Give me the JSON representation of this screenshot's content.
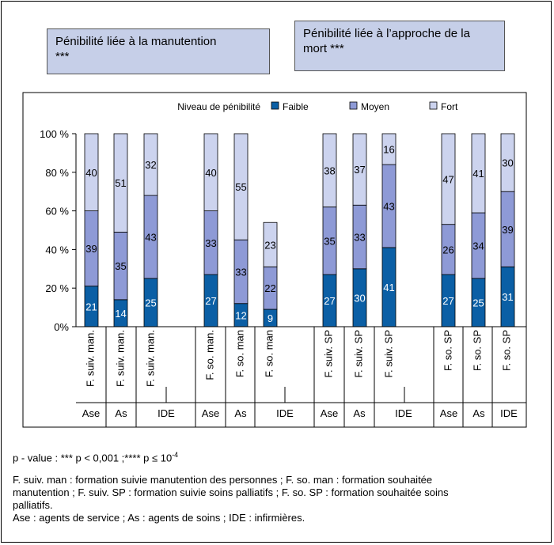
{
  "title_left": {
    "line1": "Pénibilité liée à la manutention",
    "line2": "***"
  },
  "title_right": {
    "line1": "Pénibilité liée à l’approche de la",
    "line2": "mort ***"
  },
  "chart_data": {
    "type": "bar",
    "stacked": true,
    "percent_scale": true,
    "legend_title": "Niveau de pénibilité",
    "legend_position": "top",
    "yticks": [
      "0%",
      "20 %",
      "40 %",
      "60 %",
      "80 %",
      "100 %"
    ],
    "ylim": [
      0,
      100
    ],
    "series": [
      {
        "name": "Faible",
        "color": "#0b5fa5",
        "values": [
          21,
          14,
          25,
          27,
          12,
          9,
          27,
          30,
          41,
          27,
          25,
          31
        ]
      },
      {
        "name": "Moyen",
        "color": "#8e9ad6",
        "values": [
          39,
          35,
          43,
          33,
          33,
          22,
          35,
          33,
          43,
          26,
          34,
          39
        ]
      },
      {
        "name": "Fort",
        "color": "#ccd3ee",
        "values": [
          40,
          51,
          32,
          40,
          55,
          23,
          38,
          37,
          16,
          47,
          41,
          30
        ]
      }
    ],
    "groups": [
      {
        "categories": [
          "F. suiv. man.",
          "F. suiv. man.",
          "F. suiv. man."
        ],
        "roles": [
          "Ase",
          "As",
          "IDE"
        ]
      },
      {
        "categories": [
          "F. so. man.",
          "F. so. man",
          "F. so. man"
        ],
        "roles": [
          "Ase",
          "As",
          "IDE"
        ]
      },
      {
        "categories": [
          "F. suiv. SP",
          "F. suiv. SP",
          "F. suiv. SP"
        ],
        "roles": [
          "Ase",
          "As",
          "IDE"
        ]
      },
      {
        "categories": [
          "F. so. SP",
          "F. so. SP",
          "F. so. SP"
        ],
        "roles": [
          "Ase",
          "As",
          "IDE"
        ]
      }
    ]
  },
  "notes": {
    "pvalue": "p - value : *** p < 0,001 ;**** p ≤ 10",
    "pvalue_exp": "-4",
    "line1": "F. suiv. man : formation suivie manutention des personnes ; F. so. man : formation souhaitée",
    "line2": "manutention ; F. suiv. SP : formation suivie soins palliatifs ;  F. so. SP : formation souhaitée soins",
    "line3": "palliatifs.",
    "line4": "Ase : agents de service ; As : agents de soins ; IDE : infirmières."
  }
}
